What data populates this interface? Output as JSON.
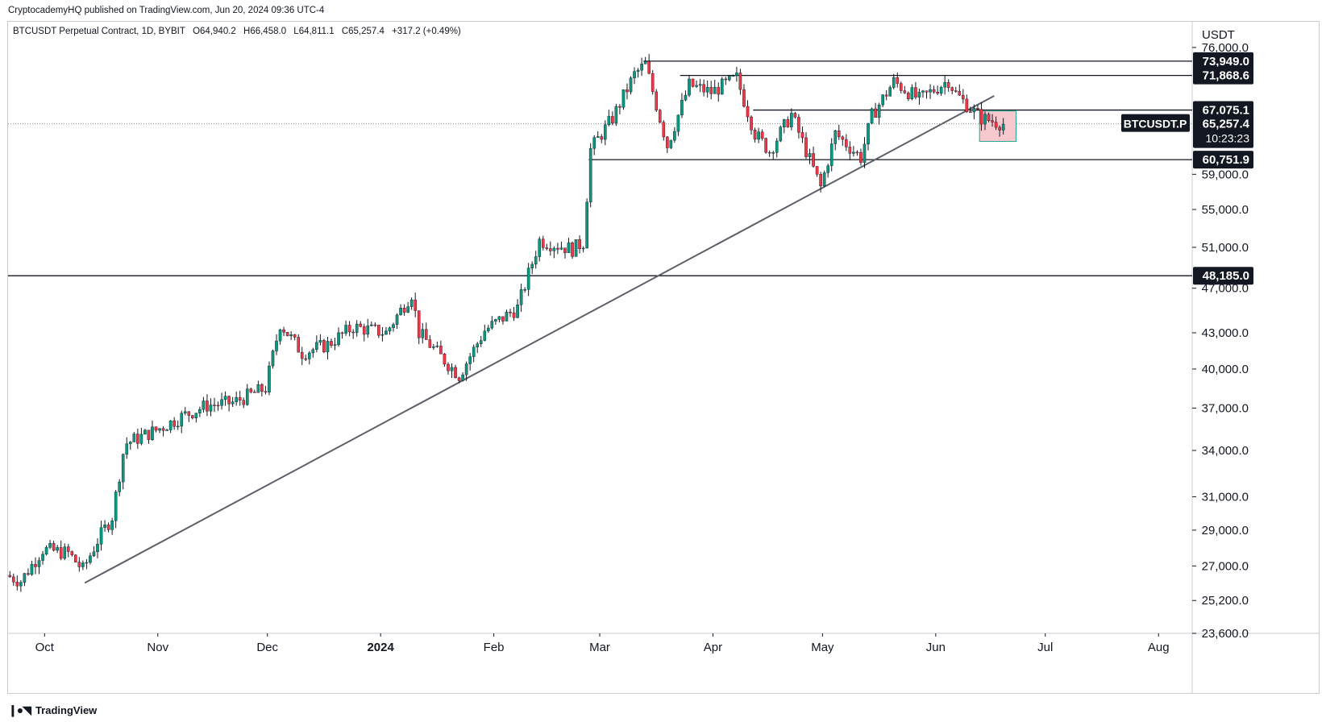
{
  "header": {
    "published": "CryptocademyHQ published on TradingView.com, Jun 20, 2024 09:36 UTC-4",
    "symbol": "BTCUSDT Perpetual Contract, 1D, BYBIT",
    "open": "O64,940.2",
    "high": "H66,458.0",
    "low": "L64,811.1",
    "close": "C65,257.4",
    "change": "+317.2 (+0.49%)"
  },
  "brand": {
    "name": "TradingView"
  },
  "colors": {
    "up": "#089981",
    "down": "#f23645",
    "line": "#5d606b",
    "dark": "#131722",
    "box": "#f7c9cf"
  },
  "chart_data": {
    "type": "candlestick",
    "currency_label": "USDT",
    "y_scale": "log",
    "ylim": [
      23600,
      80000
    ],
    "y_ticks": [
      "76,000.0",
      "59,000.0",
      "55,000.0",
      "51,000.0",
      "47,000.0",
      "43,000.0",
      "40,000.0",
      "37,000.0",
      "34,000.0",
      "31,000.0",
      "29,000.0",
      "27,000.0",
      "25,200.0",
      "23,600.0"
    ],
    "x_ticks": [
      "Oct",
      "Nov",
      "Dec",
      "2024",
      "Feb",
      "Mar",
      "Apr",
      "May",
      "Jun",
      "Jul",
      "Aug"
    ],
    "x_range": [
      "2023-09-21",
      "2024-08-10"
    ],
    "series": [
      {
        "name": "BTCUSDT.P",
        "keypoints": [
          [
            "2023-09-21",
            26500
          ],
          [
            "2023-09-25",
            26200
          ],
          [
            "2023-10-01",
            27900
          ],
          [
            "2023-10-08",
            27700
          ],
          [
            "2023-10-12",
            26800
          ],
          [
            "2023-10-16",
            28400
          ],
          [
            "2023-10-20",
            29800
          ],
          [
            "2023-10-23",
            33800
          ],
          [
            "2023-10-24",
            34500
          ],
          [
            "2023-11-01",
            35400
          ],
          [
            "2023-11-09",
            36500
          ],
          [
            "2023-11-15",
            37200
          ],
          [
            "2023-11-22",
            37400
          ],
          [
            "2023-12-01",
            38500
          ],
          [
            "2023-12-05",
            43800
          ],
          [
            "2023-12-11",
            41300
          ],
          [
            "2023-12-18",
            42000
          ],
          [
            "2023-12-25",
            43500
          ],
          [
            "2024-01-03",
            43000
          ],
          [
            "2024-01-10",
            46500
          ],
          [
            "2024-01-12",
            43000
          ],
          [
            "2024-01-18",
            41000
          ],
          [
            "2024-01-23",
            39500
          ],
          [
            "2024-01-30",
            43200
          ],
          [
            "2024-02-08",
            45200
          ],
          [
            "2024-02-14",
            51700
          ],
          [
            "2024-02-23",
            50800
          ],
          [
            "2024-02-26",
            51500
          ],
          [
            "2024-02-28",
            62000
          ],
          [
            "2024-03-05",
            66000
          ],
          [
            "2024-03-11",
            72000
          ],
          [
            "2024-03-14",
            73500
          ],
          [
            "2024-03-20",
            62500
          ],
          [
            "2024-03-26",
            70500
          ],
          [
            "2024-04-01",
            69500
          ],
          [
            "2024-04-08",
            71500
          ],
          [
            "2024-04-13",
            64000
          ],
          [
            "2024-04-17",
            61800
          ],
          [
            "2024-04-23",
            66500
          ],
          [
            "2024-05-01",
            57500
          ],
          [
            "2024-05-05",
            64000
          ],
          [
            "2024-05-12",
            61000
          ],
          [
            "2024-05-15",
            66300
          ],
          [
            "2024-05-21",
            71000
          ],
          [
            "2024-05-28",
            68500
          ],
          [
            "2024-06-05",
            71200
          ],
          [
            "2024-06-07",
            69300
          ],
          [
            "2024-06-11",
            67300
          ],
          [
            "2024-06-14",
            66000
          ],
          [
            "2024-06-20",
            65257
          ]
        ]
      }
    ],
    "levels": [
      {
        "label": "73,949.0",
        "value": 73949
      },
      {
        "label": "71,868.6",
        "value": 71868.6
      },
      {
        "label": "67,075.1",
        "value": 67075.1
      },
      {
        "label": "60,751.9",
        "value": 60751.9
      },
      {
        "label": "48,185.0",
        "value": 48185
      }
    ],
    "trendline": [
      [
        "2023-10-12",
        26100
      ],
      [
        "2024-06-17",
        69000
      ]
    ],
    "last_price": {
      "symbol": "BTCUSDT.P",
      "value": "65,257.4",
      "countdown": "10:23:23"
    }
  }
}
